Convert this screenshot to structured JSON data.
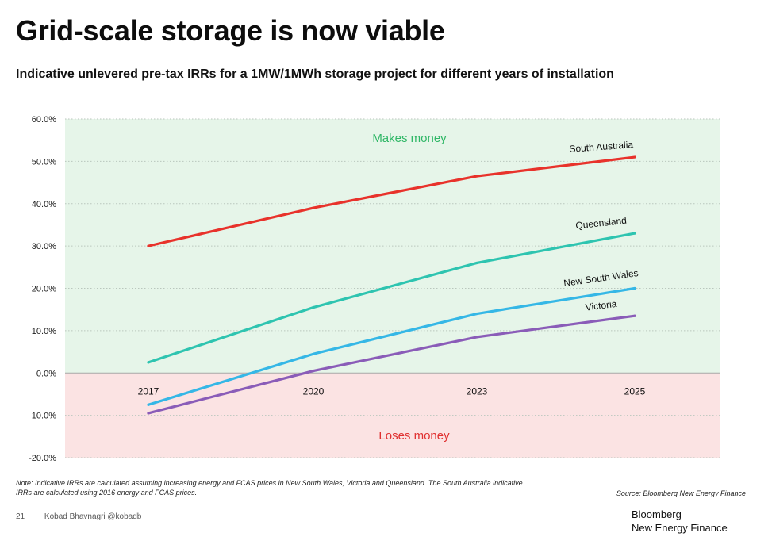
{
  "header": {
    "title": "Grid-scale storage is now viable",
    "subtitle": "Indicative unlevered pre-tax IRRs for a 1MW/1MWh storage project for different years of installation"
  },
  "chart_data": {
    "type": "line",
    "categories": [
      "2017",
      "2020",
      "2023",
      "2025"
    ],
    "ylim": [
      -20,
      60
    ],
    "ytick_labels": [
      "-20.0%",
      "-10.0%",
      "0.0%",
      "10.0%",
      "20.0%",
      "30.0%",
      "40.0%",
      "50.0%",
      "60.0%"
    ],
    "grid": true,
    "regions": [
      {
        "label": "Makes money",
        "from": 0,
        "to": 60,
        "fill": "#e6f5e9",
        "text_color": "#2fb766"
      },
      {
        "label": "Loses money",
        "from": -20,
        "to": 0,
        "fill": "#fbe3e3",
        "text_color": "#e03030"
      }
    ],
    "series": [
      {
        "name": "South Australia",
        "color": "#e8322b",
        "values": [
          30.0,
          39.0,
          46.5,
          51.0
        ]
      },
      {
        "name": "Queensland",
        "color": "#2ec4b0",
        "values": [
          2.5,
          15.5,
          26.0,
          33.0
        ]
      },
      {
        "name": "New South Wales",
        "color": "#35b7e6",
        "values": [
          -7.5,
          4.5,
          14.0,
          20.0
        ]
      },
      {
        "name": "Victoria",
        "color": "#8a5cb8",
        "values": [
          -9.5,
          0.5,
          8.5,
          13.5
        ]
      }
    ]
  },
  "footer": {
    "note": "Note: Indicative IRRs are calculated assuming increasing energy and FCAS prices in New South Wales, Victoria and Queensland. The South Australia indicative IRRs are calculated using 2016 energy and FCAS prices.",
    "source": "Source: Bloomberg New Energy Finance",
    "page_number": "21",
    "author": "Kobad Bhavnagri @kobadb",
    "brand_line1": "Bloomberg",
    "brand_line2": "New Energy Finance"
  }
}
